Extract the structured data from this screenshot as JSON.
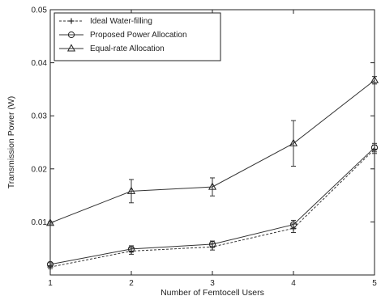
{
  "chart_data": {
    "type": "line",
    "title": "",
    "xlabel": "Number of Femtocell Users",
    "ylabel": "Transmission Power (W)",
    "x": [
      1,
      2,
      3,
      4,
      5
    ],
    "xlim": [
      1,
      5
    ],
    "ylim": [
      0,
      0.05
    ],
    "xticks": [
      1,
      2,
      3,
      4,
      5
    ],
    "yticks": [
      0.01,
      0.02,
      0.03,
      0.04,
      0.05
    ],
    "ytick_labels": [
      "0.01",
      "0.02",
      "0.03",
      "0.04",
      "0.05"
    ],
    "grid": false,
    "legend_position": "top-left",
    "series": [
      {
        "name": "Ideal Water-filling",
        "marker": "plus",
        "line_style": "dashed",
        "values": [
          0.0015,
          0.0045,
          0.0053,
          0.0088,
          0.0237
        ],
        "errors": [
          0.0003,
          0.0006,
          0.0006,
          0.0008,
          0.0008
        ]
      },
      {
        "name": "Proposed Power Allocation",
        "marker": "circle",
        "line_style": "solid",
        "values": [
          0.002,
          0.0049,
          0.0058,
          0.0095,
          0.024
        ],
        "errors": [
          0.0003,
          0.0006,
          0.0006,
          0.0008,
          0.0008
        ]
      },
      {
        "name": "Equal-rate Allocation",
        "marker": "triangle",
        "line_style": "solid",
        "values": [
          0.0098,
          0.0158,
          0.0166,
          0.0248,
          0.0367
        ],
        "errors": [
          0.0002,
          0.0022,
          0.0017,
          0.0043,
          0.0007
        ]
      }
    ]
  }
}
